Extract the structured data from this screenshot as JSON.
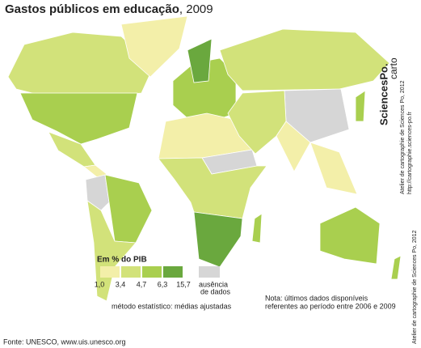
{
  "header": {
    "title": "Gastos públicos em educação",
    "year": ", 2009"
  },
  "legend": {
    "title": "Em % do PIB",
    "breaks": [
      "1,0",
      "3,4",
      "4,7",
      "6,3",
      "15,7"
    ],
    "colors": [
      "#f3efa9",
      "#d2e27a",
      "#a9cf4f",
      "#6aa83e"
    ],
    "no_data_color": "#d6d6d6",
    "no_data": [
      "ausência",
      "de dados"
    ]
  },
  "method": "método estatístico: médias ajustadas",
  "note": [
    "Nota: últimos dados disponíveis",
    "referentes ao período entre 2006 e 2009"
  ],
  "source": "Fonte: UNESCO, www.uis.unesco.org",
  "credits": {
    "atelier": "Atelier de cartographie de Sciences Po, 2012",
    "url": "http://cartographie.sciences-po.fr",
    "carto": "carto",
    "logo": "SciencesPo.",
    "side": "Atelier de cartographie  de Sciences Po, 2012"
  }
}
